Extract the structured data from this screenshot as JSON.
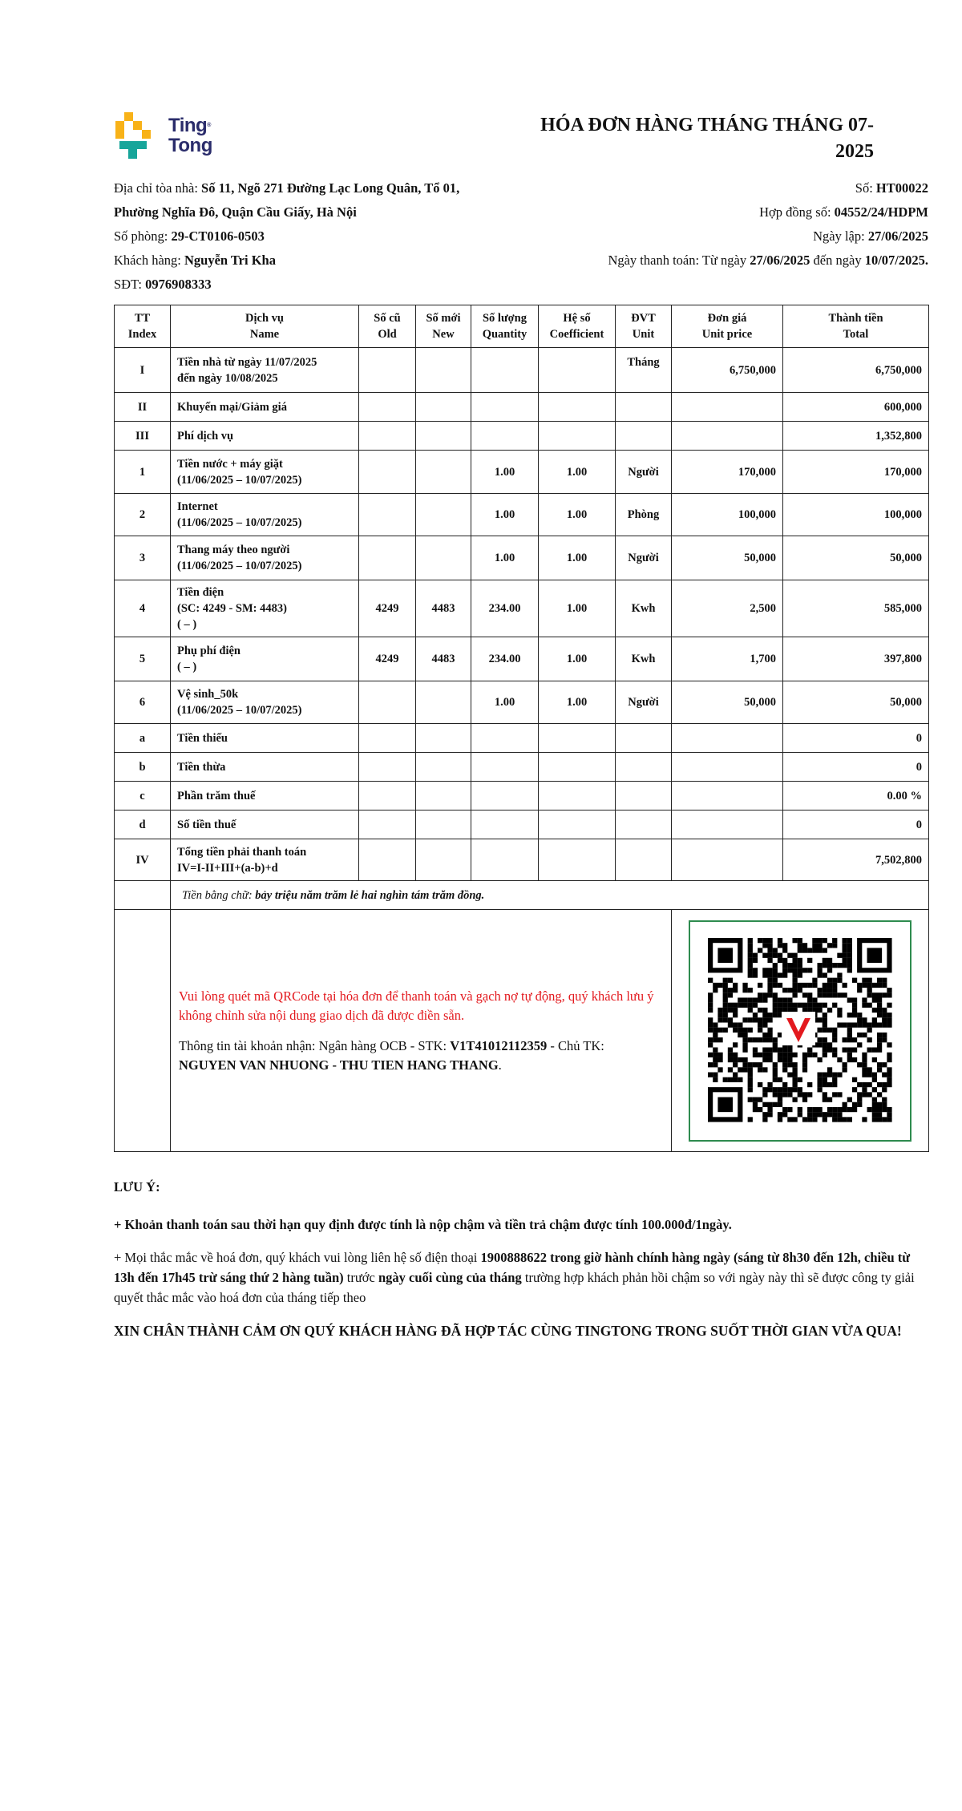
{
  "logo": {
    "line1": "Ting",
    "line2": "Tong",
    "colors": {
      "yellow": "#f8b218",
      "teal": "#17a59a",
      "navy": "#2a2c6b"
    }
  },
  "title": "HÓA ĐƠN HÀNG THÁNG THÁNG 07-2025",
  "info": {
    "address_label": "Địa chỉ tòa nhà: ",
    "address_line1": "Số 11, Ngõ 271 Đường Lạc Long Quân, Tổ 01,",
    "address_line2": "Phường Nghĩa Đô, Quận Cầu Giấy, Hà Nội",
    "room_label": "Số phòng: ",
    "room": "29-CT0106-0503",
    "customer_label": "Khách hàng: ",
    "customer": "Nguyễn Tri Kha",
    "phone_label": "SĐT: ",
    "phone": "0976908333",
    "invoice_no_label": "Số: ",
    "invoice_no": "HT00022",
    "contract_label": "Hợp đồng số: ",
    "contract": "04552/24/HDPM",
    "created_label": "Ngày lập: ",
    "created": "27/06/2025",
    "pay_label": "Ngày thanh toán: Từ ngày ",
    "pay_from": "27/06/2025",
    "pay_mid": " đến ngày ",
    "pay_to": "10/07/2025."
  },
  "table": {
    "headers": [
      [
        "TT",
        "Index"
      ],
      [
        "Dịch vụ",
        "Name"
      ],
      [
        "Số cũ",
        "Old"
      ],
      [
        "Số mới",
        "New"
      ],
      [
        "Số lượng",
        "Quantity"
      ],
      [
        "Hệ số",
        "Coefficient"
      ],
      [
        "ĐVT",
        "Unit"
      ],
      [
        "Đơn giá",
        "Unit price"
      ],
      [
        "Thành tiền",
        "Total"
      ]
    ],
    "rows": [
      {
        "index": "I",
        "name": [
          "Tiền nhà từ ngày 11/07/2025",
          "đến ngày 10/08/2025"
        ],
        "old": "",
        "new": "",
        "qty": "",
        "coef": "",
        "unit": "Tháng",
        "price": "6,750,000",
        "total": "6,750,000"
      },
      {
        "index": "II",
        "name": [
          "Khuyến mại/Giảm giá"
        ],
        "old": "",
        "new": "",
        "qty": "",
        "coef": "",
        "unit": "",
        "price": "",
        "total": "600,000"
      },
      {
        "index": "III",
        "name": [
          "Phí dịch vụ"
        ],
        "old": "",
        "new": "",
        "qty": "",
        "coef": "",
        "unit": "",
        "price": "",
        "total": "1,352,800"
      },
      {
        "index": "1",
        "name": [
          "Tiền nước + máy giặt",
          "(11/06/2025 – 10/07/2025)"
        ],
        "old": "",
        "new": "",
        "qty": "1.00",
        "coef": "1.00",
        "unit": "Người",
        "price": "170,000",
        "total": "170,000"
      },
      {
        "index": "2",
        "name": [
          "Internet",
          "(11/06/2025 – 10/07/2025)"
        ],
        "old": "",
        "new": "",
        "qty": "1.00",
        "coef": "1.00",
        "unit": "Phòng",
        "price": "100,000",
        "total": "100,000"
      },
      {
        "index": "3",
        "name": [
          "Thang máy theo người",
          "(11/06/2025 – 10/07/2025)"
        ],
        "old": "",
        "new": "",
        "qty": "1.00",
        "coef": "1.00",
        "unit": "Người",
        "price": "50,000",
        "total": "50,000"
      },
      {
        "index": "4",
        "name": [
          "Tiền điện",
          "(SC: 4249 - SM: 4483)",
          "( – )"
        ],
        "old": "4249",
        "new": "4483",
        "qty": "234.00",
        "coef": "1.00",
        "unit": "Kwh",
        "price": "2,500",
        "total": "585,000"
      },
      {
        "index": "5",
        "name": [
          "Phụ phí điện",
          "( – )"
        ],
        "old": "4249",
        "new": "4483",
        "qty": "234.00",
        "coef": "1.00",
        "unit": "Kwh",
        "price": "1,700",
        "total": "397,800"
      },
      {
        "index": "6",
        "name": [
          "Vệ sinh_50k",
          "(11/06/2025 – 10/07/2025)"
        ],
        "old": "",
        "new": "",
        "qty": "1.00",
        "coef": "1.00",
        "unit": "Người",
        "price": "50,000",
        "total": "50,000"
      },
      {
        "index": "a",
        "name": [
          "Tiền thiếu"
        ],
        "old": "",
        "new": "",
        "qty": "",
        "coef": "",
        "unit": "",
        "price": "",
        "total": "0"
      },
      {
        "index": "b",
        "name": [
          "Tiền thừa"
        ],
        "old": "",
        "new": "",
        "qty": "",
        "coef": "",
        "unit": "",
        "price": "",
        "total": "0"
      },
      {
        "index": "c",
        "name": [
          "Phần trăm thuế"
        ],
        "old": "",
        "new": "",
        "qty": "",
        "coef": "",
        "unit": "",
        "price": "",
        "total": "0.00 %"
      },
      {
        "index": "d",
        "name": [
          "Số tiền thuế"
        ],
        "old": "",
        "new": "",
        "qty": "",
        "coef": "",
        "unit": "",
        "price": "",
        "total": "0"
      },
      {
        "index": "IV",
        "name": [
          "Tổng tiền phải thanh toán",
          "IV=I-II+III+(a-b)+d"
        ],
        "old": "",
        "new": "",
        "qty": "",
        "coef": "",
        "unit": "",
        "price": "",
        "total": "7,502,800"
      }
    ],
    "words_label": "Tiền bằng chữ: ",
    "words": "bảy triệu năm trăm lẻ hai nghìn tám trăm đồng."
  },
  "payment": {
    "notice": "Vui lòng quét mã QRCode tại hóa đơn để thanh toán và gạch nợ tự động, quý khách lưu ý không chỉnh sửa nội dung giao dịch đã được điền sẵn.",
    "account_label": "Thông tin tài khoản nhận: Ngân hàng OCB - STK: ",
    "account_no": "V1T41012112359",
    "owner_label": " - Chủ TK: ",
    "owner": "NGUYEN VAN NHUONG - THU TIEN HANG THANG",
    "owner_suffix": ".",
    "qr_icon": "qr-code-with-v-logo",
    "colors": {
      "notice": "#e3191e",
      "qr_border": "#2e8b4f"
    }
  },
  "notes": {
    "heading": "LƯU Ý:",
    "late_fee": "+ Khoản thanh toán sau thời hạn quy định được tính là nộp chậm và tiền trả chậm được tính 100.000đ/1ngày.",
    "contact": [
      {
        "text": "+ Mọi thắc mắc về hoá đơn, quý khách vui lòng liên hệ số điện thoại ",
        "bold": false
      },
      {
        "text": "1900888622 trong giờ hành chính hàng ngày (sáng từ 8h30 đến 12h, chiều từ 13h đến 17h45 trừ sáng thứ 2 hàng tuần)",
        "bold": true
      },
      {
        "text": " trước ",
        "bold": false
      },
      {
        "text": "ngày cuối cùng của tháng",
        "bold": true
      },
      {
        "text": " trường hợp khách phản hồi chậm so với ngày này thì sẽ được công ty giải quyết thắc mắc vào hoá đơn của tháng tiếp theo",
        "bold": false
      }
    ],
    "thanks": "XIN CHÂN THÀNH CẢM ƠN QUÝ KHÁCH HÀNG ĐÃ HỢP TÁC CÙNG TINGTONG TRONG SUỐT THỜI GIAN VỪA QUA!"
  }
}
